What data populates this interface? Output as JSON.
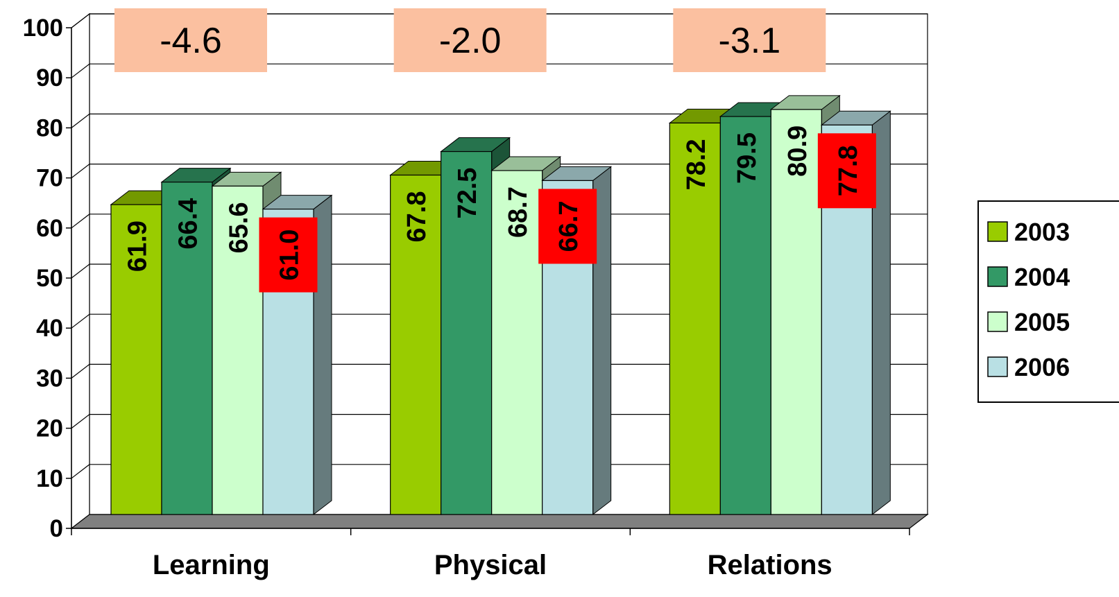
{
  "chart_data": {
    "type": "bar",
    "categories": [
      "Learning",
      "Physical",
      "Relations"
    ],
    "series": [
      {
        "name": "2003",
        "values": [
          61.9,
          67.8,
          78.2
        ],
        "labels": [
          "61.9",
          "67.8",
          "78.2"
        ]
      },
      {
        "name": "2004",
        "values": [
          66.4,
          72.5,
          79.5
        ],
        "labels": [
          "66.4",
          "72.5",
          "79.5"
        ]
      },
      {
        "name": "2005",
        "values": [
          65.6,
          68.7,
          80.9
        ],
        "labels": [
          "65.6",
          "68.7",
          "80.9"
        ]
      },
      {
        "name": "2006",
        "values": [
          61.0,
          66.7,
          77.8
        ],
        "labels": [
          "61.0",
          "66.7",
          "77.8"
        ]
      }
    ],
    "y_ticks": [
      "0",
      "10",
      "20",
      "30",
      "40",
      "50",
      "60",
      "70",
      "80",
      "90",
      "100"
    ],
    "ylim": [
      0,
      100
    ],
    "grid": true,
    "three_d": true,
    "legend_position": "right",
    "annotations": [
      "-4.6",
      "-2.0",
      "-3.1"
    ],
    "colors": {
      "2003": "#99CC00",
      "2004": "#339966",
      "2005": "#CCFFCC",
      "2006": "#B9E0E4",
      "annotation_box": "#FBC0A0",
      "highlight_label": "#FF0000",
      "floor": "#808080"
    }
  }
}
